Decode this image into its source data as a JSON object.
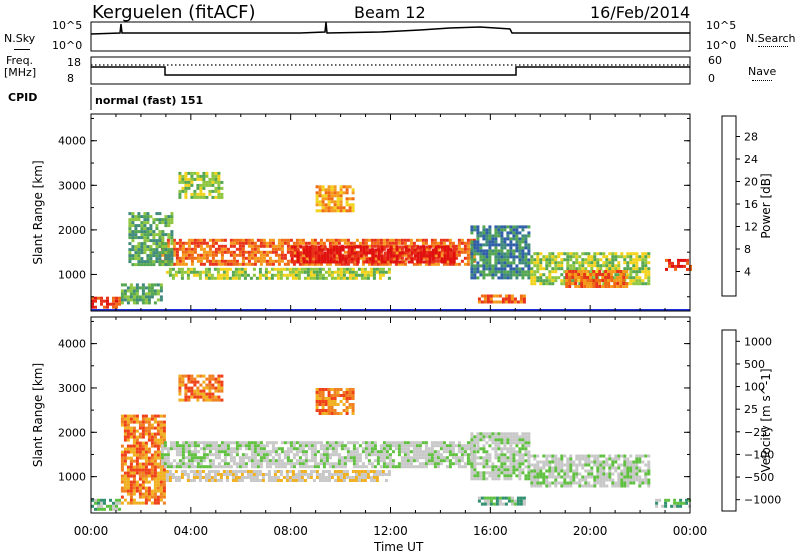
{
  "header": {
    "station": "Kerguelen (fitACF)",
    "beam": "Beam 12",
    "date": "16/Feb/2014"
  },
  "top_panels": {
    "nsky_label": "N.Sky",
    "nsky_ticks": [
      "10^5",
      "10^0"
    ],
    "nsearch_label": "N.Search",
    "freq_label_1": "Freq.",
    "freq_label_2": "[MHz]",
    "freq_ticks": [
      "18",
      "8"
    ],
    "nave_label": "Nave",
    "nave_ticks": [
      "60",
      "0"
    ],
    "cpid_label": "CPID",
    "cpid_value": "normal (fast) 151"
  },
  "chart_data": [
    {
      "type": "heatmap",
      "name": "power",
      "ylabel": "Slant Range [km]",
      "ylim": [
        180,
        4600
      ],
      "yticks": [
        "1000",
        "2000",
        "3000",
        "4000"
      ],
      "xlim": [
        0,
        24
      ],
      "colorbar_label": "Power [dB]",
      "colorbar_ticks": [
        "4",
        "8",
        "12",
        "16",
        "20",
        "24",
        "28"
      ],
      "colors": [
        "#1f2fd6",
        "#2f5fa8",
        "#3f8a7a",
        "#54a650",
        "#8ec63f",
        "#f2d21b",
        "#f59a1a",
        "#f06a14",
        "#e8321a",
        "#e01010"
      ],
      "regions": [
        {
          "t0": 0.0,
          "t1": 1.2,
          "r0": 250,
          "r1": 500,
          "level": 8
        },
        {
          "t0": 1.2,
          "t1": 2.8,
          "r0": 350,
          "r1": 800,
          "level": 3
        },
        {
          "t0": 2.8,
          "t1": 15.4,
          "r0": 1250,
          "r1": 1800,
          "level": 7
        },
        {
          "t0": 8.0,
          "t1": 14.5,
          "r0": 1300,
          "r1": 1650,
          "level": 9
        },
        {
          "t0": 3.0,
          "t1": 12.0,
          "r0": 900,
          "r1": 1150,
          "level": 4
        },
        {
          "t0": 1.5,
          "t1": 3.2,
          "r0": 1200,
          "r1": 2400,
          "level": 3
        },
        {
          "t0": 3.5,
          "t1": 5.2,
          "r0": 2700,
          "r1": 3300,
          "level": 4
        },
        {
          "t0": 9.0,
          "t1": 10.5,
          "r0": 2400,
          "r1": 3000,
          "level": 6
        },
        {
          "t0": 15.2,
          "t1": 17.6,
          "r0": 950,
          "r1": 2100,
          "level": 2
        },
        {
          "t0": 15.5,
          "t1": 17.4,
          "r0": 350,
          "r1": 550,
          "level": 7
        },
        {
          "t0": 17.6,
          "t1": 22.4,
          "r0": 800,
          "r1": 1500,
          "level": 4
        },
        {
          "t0": 19.0,
          "t1": 21.5,
          "r0": 750,
          "r1": 1100,
          "level": 7
        },
        {
          "t0": 23.0,
          "t1": 24.0,
          "r0": 1100,
          "r1": 1350,
          "level": 8
        }
      ]
    },
    {
      "type": "heatmap",
      "name": "velocity",
      "ylabel": "Slant Range [km]",
      "ylim": [
        180,
        4600
      ],
      "yticks": [
        "1000",
        "2000",
        "3000",
        "4000"
      ],
      "xlim": [
        0,
        24
      ],
      "xticks": [
        "00:00",
        "04:00",
        "08:00",
        "12:00",
        "16:00",
        "20:00",
        "00:00"
      ],
      "xlabel": "Time UT",
      "colorbar_label": "Velocity [m s^-1]",
      "colorbar_ticks": [
        "1000",
        "500",
        "100",
        "25",
        "−25",
        "−100",
        "−500",
        "−1000"
      ],
      "colors": [
        "#2030c0",
        "#3060b0",
        "#309070",
        "#60c040",
        "#c8c8c8",
        "#c8c8c8",
        "#f0b020",
        "#f08020",
        "#f04018",
        "#e01010"
      ],
      "regions": [
        {
          "t0": 0.0,
          "t1": 1.2,
          "r0": 250,
          "r1": 500,
          "level": 3
        },
        {
          "t0": 1.2,
          "t1": 3.0,
          "r0": 400,
          "r1": 2400,
          "level": 7
        },
        {
          "t0": 2.8,
          "t1": 15.4,
          "r0": 1250,
          "r1": 1800,
          "level": 4
        },
        {
          "t0": 3.0,
          "t1": 12.0,
          "r0": 900,
          "r1": 1150,
          "level": 5
        },
        {
          "t0": 3.5,
          "t1": 5.2,
          "r0": 2700,
          "r1": 3300,
          "level": 7
        },
        {
          "t0": 9.0,
          "t1": 10.5,
          "r0": 2400,
          "r1": 3000,
          "level": 7
        },
        {
          "t0": 15.2,
          "t1": 17.6,
          "r0": 950,
          "r1": 2000,
          "level": 4
        },
        {
          "t0": 15.5,
          "t1": 17.4,
          "r0": 350,
          "r1": 550,
          "level": 3
        },
        {
          "t0": 17.6,
          "t1": 22.4,
          "r0": 800,
          "r1": 1500,
          "level": 4
        },
        {
          "t0": 22.6,
          "t1": 24.0,
          "r0": 300,
          "r1": 500,
          "level": 3
        }
      ]
    }
  ]
}
